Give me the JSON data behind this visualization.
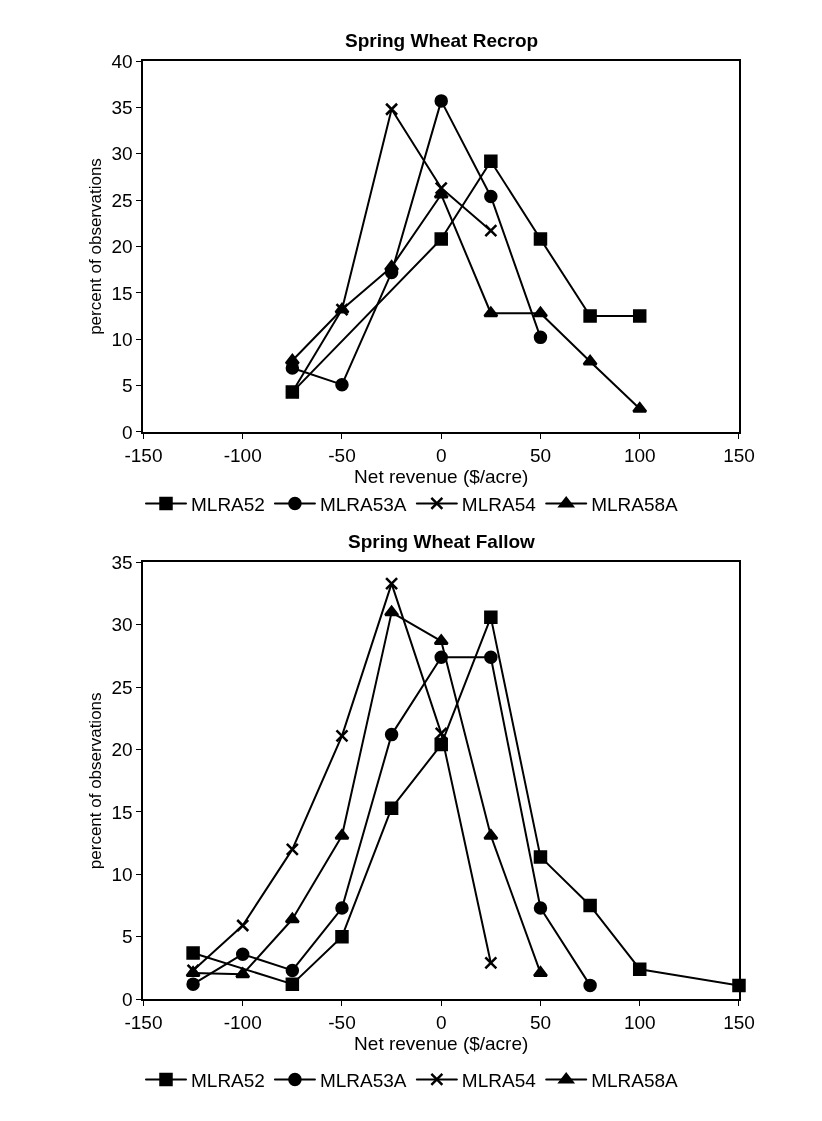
{
  "chart_data": [
    {
      "type": "line",
      "title": "Spring Wheat Recrop",
      "xlabel": "Net revenue ($/acre)",
      "ylabel": "percent of observations",
      "xlim": [
        -150,
        150
      ],
      "xticks": [
        -150,
        -100,
        -50,
        0,
        50,
        100,
        150
      ],
      "ylim": [
        0,
        40
      ],
      "yticks": [
        0,
        5,
        10,
        15,
        20,
        25,
        30,
        35,
        40
      ],
      "legend": "bottom",
      "series": [
        {
          "name": "MLRA52",
          "color": "#000000",
          "marker": "square",
          "x": [
            -75,
            0,
            25,
            50,
            75,
            100
          ],
          "values": [
            4.3,
            20.8,
            29.2,
            20.8,
            12.5,
            12.5
          ]
        },
        {
          "name": "MLRA53A",
          "color": "#000000",
          "marker": "circle",
          "x": [
            -75,
            -50,
            -25,
            0,
            25,
            50
          ],
          "values": [
            6.9,
            5.1,
            17.2,
            35.7,
            25.4,
            10.2
          ]
        },
        {
          "name": "MLRA54",
          "color": "#000000",
          "marker": "cross",
          "x": [
            -75,
            -50,
            -25,
            0,
            25
          ],
          "values": [
            4.3,
            13.2,
            34.8,
            26.3,
            21.7
          ]
        },
        {
          "name": "MLRA58A",
          "color": "#000000",
          "marker": "triangle",
          "x": [
            -75,
            -50,
            -25,
            0,
            25,
            50,
            75,
            100
          ],
          "values": [
            7.7,
            13.2,
            17.8,
            25.6,
            12.8,
            12.8,
            7.6,
            2.5
          ]
        }
      ]
    },
    {
      "type": "line",
      "title": "Spring Wheat Fallow",
      "xlabel": "Net revenue ($/acre)",
      "ylabel": "percent of observations",
      "xlim": [
        -150,
        150
      ],
      "xticks": [
        -150,
        -100,
        -50,
        0,
        50,
        100,
        150
      ],
      "ylim": [
        0,
        35
      ],
      "yticks": [
        0,
        5,
        10,
        15,
        20,
        25,
        30,
        35
      ],
      "legend": "bottom",
      "series": [
        {
          "name": "MLRA52",
          "color": "#000000",
          "marker": "square",
          "x": [
            -125,
            -75,
            -50,
            -25,
            0,
            25,
            50,
            75,
            100,
            150
          ],
          "values": [
            3.7,
            1.2,
            5.0,
            15.3,
            20.4,
            30.6,
            11.4,
            7.5,
            2.4,
            1.1
          ]
        },
        {
          "name": "MLRA53A",
          "color": "#000000",
          "marker": "circle",
          "x": [
            -125,
            -100,
            -75,
            -50,
            -25,
            0,
            25,
            50,
            75
          ],
          "values": [
            1.2,
            3.6,
            2.3,
            7.3,
            21.2,
            27.4,
            27.4,
            7.3,
            1.1
          ]
        },
        {
          "name": "MLRA54",
          "color": "#000000",
          "marker": "cross",
          "x": [
            -125,
            -100,
            -75,
            -50,
            -25,
            0,
            25
          ],
          "values": [
            2.3,
            5.9,
            12.0,
            21.1,
            33.3,
            21.3,
            2.9
          ]
        },
        {
          "name": "MLRA58A",
          "color": "#000000",
          "marker": "triangle",
          "x": [
            -125,
            -100,
            -75,
            -50,
            -25,
            0,
            25,
            50
          ],
          "values": [
            2.1,
            2.0,
            6.4,
            13.1,
            31.0,
            28.7,
            13.1,
            2.1
          ]
        }
      ]
    }
  ]
}
